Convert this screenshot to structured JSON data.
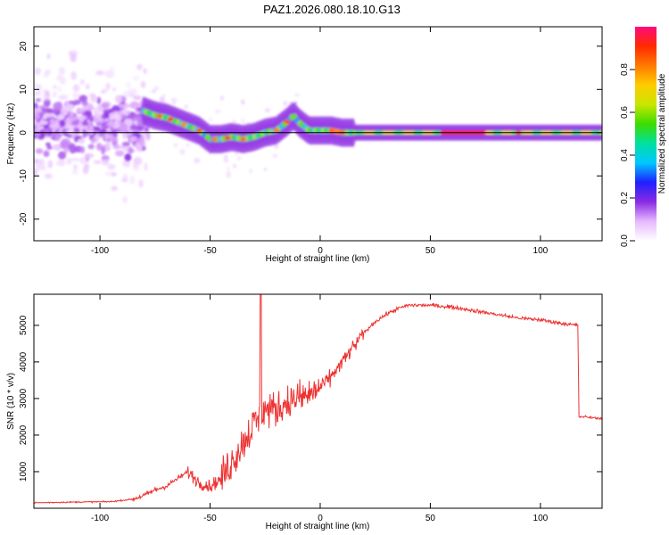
{
  "title": "PAZ1.2026.080.18.10.G13",
  "chart_data": [
    {
      "type": "heatmap",
      "title": "PAZ1.2026.080.18.10.G13",
      "xlabel": "Height of straight line (km)",
      "ylabel": "Frequency (Hz)",
      "xlim": [
        -130,
        128
      ],
      "ylim": [
        -25,
        24.5
      ],
      "xticks": [
        -100,
        -50,
        0,
        50,
        100
      ],
      "yticks": [
        -20,
        -10,
        0,
        10,
        20
      ],
      "colorbar": {
        "label": "Normalized spectral amplitude",
        "range": [
          0,
          1
        ],
        "ticks": [
          "0.0",
          "0.2",
          "0.4",
          "0.6",
          "0.8"
        ],
        "colors": [
          "#ffffff",
          "#e6b8ff",
          "#8a2be2",
          "#1f1fff",
          "#00c8ff",
          "#00e0a0",
          "#3bdc00",
          "#c8e600",
          "#ffcc00",
          "#ff7a00",
          "#ff2a00",
          "#ff0a7a"
        ]
      },
      "ridge": {
        "x": [
          -80,
          -75,
          -70,
          -65,
          -60,
          -55,
          -50,
          -45,
          -40,
          -35,
          -30,
          -25,
          -20,
          -15,
          -12,
          -10,
          -5,
          0,
          5,
          10,
          20,
          40,
          60,
          80,
          100,
          128
        ],
        "y": [
          5,
          4,
          3.5,
          2.5,
          1.5,
          0.5,
          -1.5,
          -1.5,
          -1,
          -1.5,
          -1,
          0,
          0.5,
          2.5,
          4,
          2.5,
          0.5,
          0.5,
          0.5,
          0,
          0,
          0,
          0,
          0,
          0,
          0
        ]
      }
    },
    {
      "type": "line",
      "xlabel": "Height of straight line (km)",
      "ylabel": "SNR (10 * v/v)",
      "xlim": [
        -130,
        128
      ],
      "ylim": [
        0,
        5850
      ],
      "xticks": [
        -100,
        -50,
        0,
        50,
        100
      ],
      "yticks": [
        1000,
        2000,
        3000,
        4000,
        5000
      ],
      "color": "#ee3333",
      "series": [
        {
          "name": "SNR",
          "x": [
            -130,
            -110,
            -95,
            -85,
            -80,
            -75,
            -70,
            -65,
            -60,
            -55,
            -50,
            -45,
            -40,
            -35,
            -30,
            -25,
            -20,
            -15,
            -10,
            -5,
            0,
            5,
            10,
            15,
            20,
            25,
            30,
            35,
            40,
            50,
            60,
            70,
            80,
            90,
            100,
            110,
            117,
            117.5,
            120,
            128
          ],
          "y": [
            150,
            170,
            180,
            250,
            350,
            500,
            600,
            800,
            1000,
            700,
            600,
            800,
            1300,
            1800,
            2300,
            2700,
            2700,
            2900,
            3000,
            3100,
            3300,
            3600,
            4000,
            4400,
            4800,
            5100,
            5300,
            5450,
            5550,
            5550,
            5500,
            5400,
            5300,
            5200,
            5150,
            5050,
            5000,
            2500,
            2500,
            2450
          ]
        }
      ]
    }
  ]
}
